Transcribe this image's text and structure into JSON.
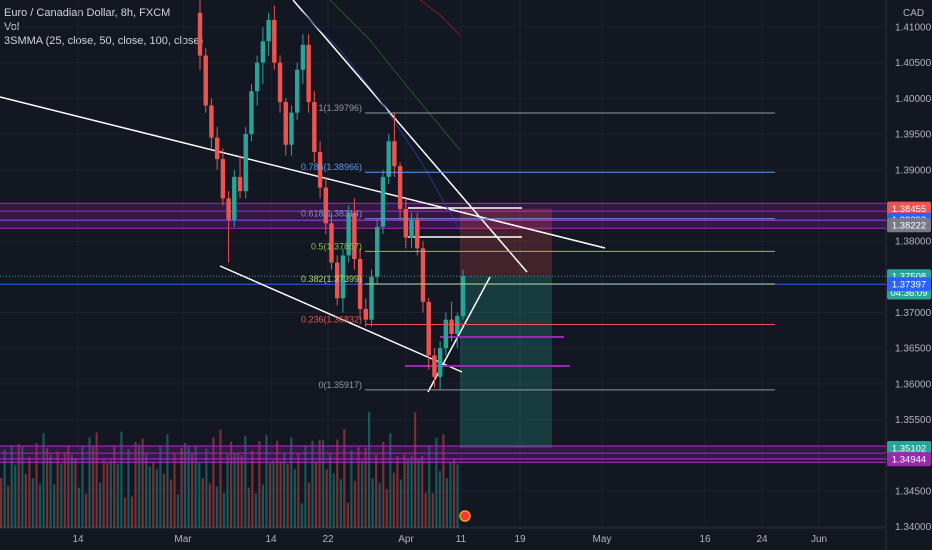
{
  "header": {
    "symbol_line": "Euro / Canadian Dollar, 8h, FXCM",
    "vol_label": "Vol",
    "indicator_label": "3SMMA (25, close, 50, close, 100, close)"
  },
  "currency_label": "CAD",
  "colors": {
    "background": "#131722",
    "bull": "#26a69a",
    "bear": "#ef5350",
    "trendline": "#ffffff",
    "zone": "#9c27b0",
    "blue_line": "#2962ff",
    "target_box": "#26a69a",
    "stop_box": "#ef5350"
  },
  "chart_data": {
    "type": "candlestick",
    "title": "Euro / Canadian Dollar, 8h, FXCM",
    "x_axis": {
      "tick_labels": [
        "14",
        "Mar",
        "14",
        "22",
        "Apr",
        "11",
        "19",
        "May",
        "16",
        "24",
        "Jun"
      ]
    },
    "y_axis": {
      "range": [
        1.343,
        1.413
      ],
      "tick_labels": [
        "1.41000",
        "1.40500",
        "1.40000",
        "1.39500",
        "1.39000",
        "1.38000",
        "1.37000",
        "1.36500",
        "1.36000",
        "1.35500",
        "1.34500",
        "1.34000"
      ],
      "tick_values": [
        1.41,
        1.405,
        1.4,
        1.395,
        1.39,
        1.38,
        1.37,
        1.365,
        1.36,
        1.355,
        1.345,
        1.34
      ]
    },
    "price_tags": [
      {
        "label": "1.38455",
        "value": 1.38455,
        "color": "#ef5350"
      },
      {
        "label": "1.38298",
        "value": 1.38298,
        "color": "#2962ff"
      },
      {
        "label": "1.38222",
        "value": 1.38222,
        "color": "#787b86"
      },
      {
        "label": "1.37508",
        "value": 1.37508,
        "color": "#26a69a"
      },
      {
        "label": "04:36:09",
        "value": 1.3728,
        "color": "#26a69a"
      },
      {
        "label": "1.37397",
        "value": 1.37397,
        "color": "#2962ff"
      },
      {
        "label": "1.35102",
        "value": 1.35102,
        "color": "#26a69a"
      },
      {
        "label": "1.34944",
        "value": 1.34944,
        "color": "#9c27b0"
      }
    ],
    "fib_levels": [
      {
        "label": "1(1.39796)",
        "value": 1.39796,
        "color": "#9598a1"
      },
      {
        "label": "0.786(1.38966)",
        "value": 1.38966,
        "color": "#5b9cf6"
      },
      {
        "label": "0.618(1.38314)",
        "value": 1.38314,
        "color": "#7e8fc9"
      },
      {
        "label": "0.5(1.37857)",
        "value": 1.37857,
        "color": "#8bc34a"
      },
      {
        "label": "0.382(1.37399)",
        "value": 1.37399,
        "color": "#b2d96a"
      },
      {
        "label": "0.236(1.36832)",
        "value": 1.36832,
        "color": "#ef5350"
      },
      {
        "label": "0(1.35917)",
        "value": 1.35917,
        "color": "#9598a1"
      }
    ],
    "candles": [
      {
        "o": 1.412,
        "h": 1.414,
        "l": 1.404,
        "c": 1.406
      },
      {
        "o": 1.406,
        "h": 1.407,
        "l": 1.398,
        "c": 1.399
      },
      {
        "o": 1.399,
        "h": 1.4,
        "l": 1.393,
        "c": 1.3945
      },
      {
        "o": 1.3945,
        "h": 1.396,
        "l": 1.39,
        "c": 1.3915
      },
      {
        "o": 1.3915,
        "h": 1.393,
        "l": 1.385,
        "c": 1.386
      },
      {
        "o": 1.386,
        "h": 1.387,
        "l": 1.377,
        "c": 1.383
      },
      {
        "o": 1.383,
        "h": 1.39,
        "l": 1.382,
        "c": 1.389
      },
      {
        "o": 1.389,
        "h": 1.392,
        "l": 1.386,
        "c": 1.387
      },
      {
        "o": 1.387,
        "h": 1.396,
        "l": 1.386,
        "c": 1.395
      },
      {
        "o": 1.395,
        "h": 1.402,
        "l": 1.394,
        "c": 1.401
      },
      {
        "o": 1.401,
        "h": 1.406,
        "l": 1.399,
        "c": 1.405
      },
      {
        "o": 1.405,
        "h": 1.41,
        "l": 1.402,
        "c": 1.408
      },
      {
        "o": 1.408,
        "h": 1.412,
        "l": 1.406,
        "c": 1.411
      },
      {
        "o": 1.411,
        "h": 1.413,
        "l": 1.404,
        "c": 1.405
      },
      {
        "o": 1.405,
        "h": 1.406,
        "l": 1.398,
        "c": 1.3995
      },
      {
        "o": 1.3995,
        "h": 1.4,
        "l": 1.392,
        "c": 1.3935
      },
      {
        "o": 1.3935,
        "h": 1.399,
        "l": 1.392,
        "c": 1.398
      },
      {
        "o": 1.398,
        "h": 1.405,
        "l": 1.397,
        "c": 1.404
      },
      {
        "o": 1.404,
        "h": 1.409,
        "l": 1.402,
        "c": 1.4075
      },
      {
        "o": 1.4075,
        "h": 1.409,
        "l": 1.398,
        "c": 1.3995
      },
      {
        "o": 1.3995,
        "h": 1.401,
        "l": 1.391,
        "c": 1.3925
      },
      {
        "o": 1.3925,
        "h": 1.394,
        "l": 1.386,
        "c": 1.3875
      },
      {
        "o": 1.3875,
        "h": 1.389,
        "l": 1.381,
        "c": 1.3825
      },
      {
        "o": 1.3825,
        "h": 1.384,
        "l": 1.376,
        "c": 1.377
      },
      {
        "o": 1.377,
        "h": 1.378,
        "l": 1.371,
        "c": 1.372
      },
      {
        "o": 1.372,
        "h": 1.379,
        "l": 1.37,
        "c": 1.378
      },
      {
        "o": 1.378,
        "h": 1.385,
        "l": 1.377,
        "c": 1.384
      },
      {
        "o": 1.384,
        "h": 1.386,
        "l": 1.376,
        "c": 1.3775
      },
      {
        "o": 1.3775,
        "h": 1.379,
        "l": 1.369,
        "c": 1.3705
      },
      {
        "o": 1.3705,
        "h": 1.372,
        "l": 1.368,
        "c": 1.369
      },
      {
        "o": 1.369,
        "h": 1.376,
        "l": 1.368,
        "c": 1.375
      },
      {
        "o": 1.375,
        "h": 1.383,
        "l": 1.374,
        "c": 1.382
      },
      {
        "o": 1.382,
        "h": 1.39,
        "l": 1.381,
        "c": 1.389
      },
      {
        "o": 1.389,
        "h": 1.395,
        "l": 1.388,
        "c": 1.394
      },
      {
        "o": 1.394,
        "h": 1.398,
        "l": 1.389,
        "c": 1.3905
      },
      {
        "o": 1.3905,
        "h": 1.391,
        "l": 1.383,
        "c": 1.3845
      },
      {
        "o": 1.3845,
        "h": 1.386,
        "l": 1.379,
        "c": 1.3805
      },
      {
        "o": 1.3805,
        "h": 1.384,
        "l": 1.379,
        "c": 1.383
      },
      {
        "o": 1.383,
        "h": 1.384,
        "l": 1.378,
        "c": 1.379
      },
      {
        "o": 1.379,
        "h": 1.38,
        "l": 1.37,
        "c": 1.3715
      },
      {
        "o": 1.3715,
        "h": 1.372,
        "l": 1.362,
        "c": 1.364
      },
      {
        "o": 1.364,
        "h": 1.365,
        "l": 1.3595,
        "c": 1.361
      },
      {
        "o": 1.361,
        "h": 1.366,
        "l": 1.3592,
        "c": 1.365
      },
      {
        "o": 1.365,
        "h": 1.37,
        "l": 1.364,
        "c": 1.369
      },
      {
        "o": 1.369,
        "h": 1.3715,
        "l": 1.366,
        "c": 1.367
      },
      {
        "o": 1.367,
        "h": 1.37,
        "l": 1.365,
        "c": 1.3695
      },
      {
        "o": 1.3695,
        "h": 1.376,
        "l": 1.369,
        "c": 1.3751
      }
    ]
  }
}
